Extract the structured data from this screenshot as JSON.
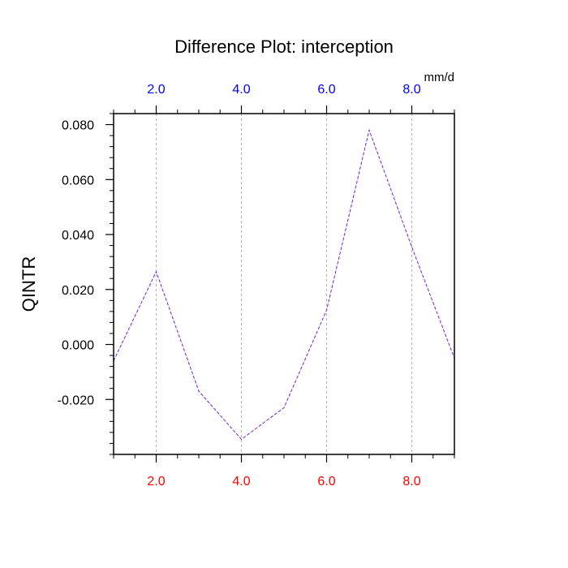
{
  "chart_data": {
    "type": "line",
    "title": "Difference Plot: interception",
    "ylabel": "QINTR",
    "units": "mm/d",
    "x": [
      1,
      2,
      3,
      4,
      5,
      6,
      7,
      8,
      9
    ],
    "series": [
      {
        "values": [
          -0.006,
          0.0265,
          -0.017,
          -0.0345,
          -0.023,
          0.0125,
          0.078,
          0.0355,
          -0.005
        ]
      }
    ],
    "xlim": [
      1,
      9
    ],
    "ylim": [
      -0.04,
      0.084
    ],
    "x_ticks": [
      2,
      4,
      6,
      8
    ],
    "x_tick_labels": [
      "2.0",
      "4.0",
      "6.0",
      "8.0"
    ],
    "top_tick_labels": [
      "2.0",
      "4.0",
      "6.0",
      "8.0"
    ],
    "y_ticks": [
      0.08,
      0.06,
      0.04,
      0.02,
      0.0,
      -0.02
    ],
    "y_tick_labels": [
      "0.080",
      "0.060",
      "0.040",
      "0.020",
      "0.000",
      "-0.020"
    ],
    "grid": "vertical dashed at major x ticks",
    "line_style": "dashed",
    "colors": {
      "line": "#7a1fd6",
      "bottom_tick_labels": "#ff0000",
      "top_tick_labels": "#0000ff",
      "grid": "#b0b0b0",
      "axes": "#000000"
    }
  }
}
